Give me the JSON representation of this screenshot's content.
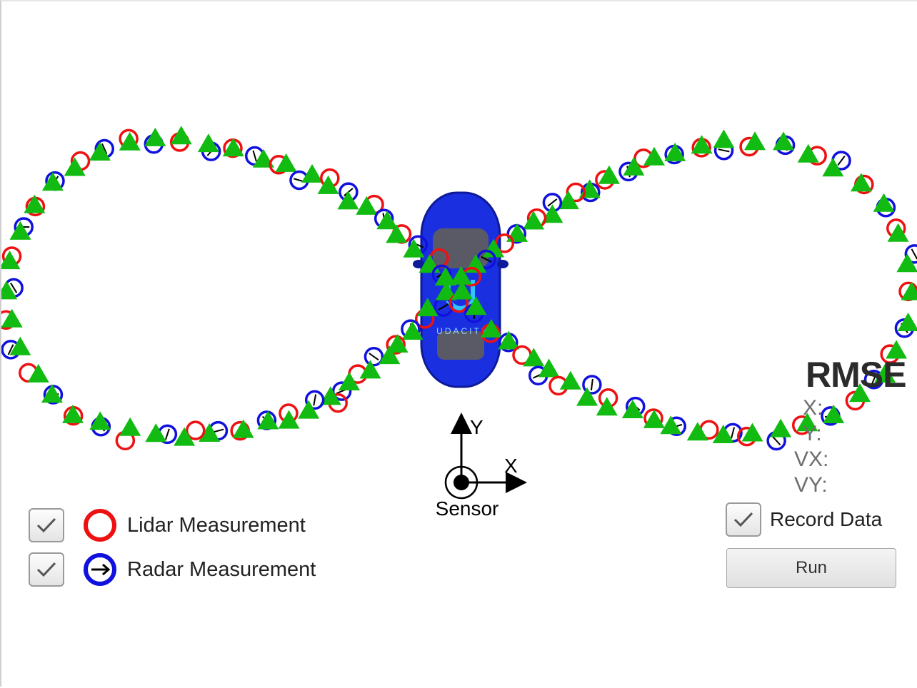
{
  "axes": {
    "x_label": "X",
    "y_label": "Y",
    "origin_label": "Sensor"
  },
  "car": {
    "logo_text": "UDACITY"
  },
  "legend": {
    "lidar_label": "Lidar Measurement",
    "radar_label": "Radar Measurement",
    "lidar_checked": true,
    "radar_checked": true
  },
  "rmse": {
    "title": "RMSE",
    "x_label": "X:",
    "y_label": "Y:",
    "vx_label": "VX:",
    "vy_label": "VY:"
  },
  "controls": {
    "record_label": "Record Data",
    "record_checked": true,
    "run_label": "Run"
  },
  "colors": {
    "lidar": "#ee1111",
    "radar": "#1111dd",
    "estimate": "#11bb11",
    "car": "#1a2fe0"
  },
  "icons": {
    "checkbox": "check-icon",
    "lidar": "red-circle-icon",
    "radar": "blue-circle-arrow-icon",
    "estimate": "green-triangle-icon"
  }
}
